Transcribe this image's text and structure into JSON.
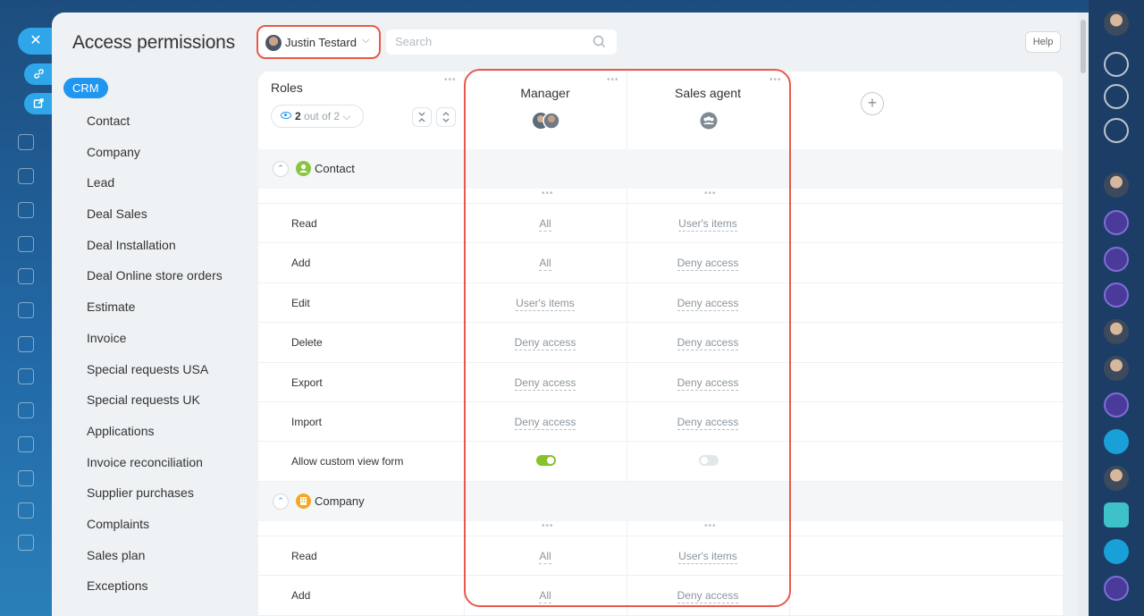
{
  "window": {
    "title": "Access permissions",
    "help_label": "Help"
  },
  "user_selector": {
    "name": "Justin Testard"
  },
  "search": {
    "placeholder": "Search"
  },
  "sidebar": {
    "section_label": "CRM",
    "items": [
      {
        "label": "Contact"
      },
      {
        "label": "Company"
      },
      {
        "label": "Lead"
      },
      {
        "label": "Deal Sales"
      },
      {
        "label": "Deal Installation"
      },
      {
        "label": "Deal Online store orders"
      },
      {
        "label": "Estimate"
      },
      {
        "label": "Invoice"
      },
      {
        "label": "Special requests USA"
      },
      {
        "label": "Special requests UK"
      },
      {
        "label": "Applications"
      },
      {
        "label": "Invoice reconciliation"
      },
      {
        "label": "Supplier purchases"
      },
      {
        "label": "Complaints"
      },
      {
        "label": "Sales plan"
      },
      {
        "label": "Exceptions"
      }
    ]
  },
  "roles_header": {
    "label": "Roles",
    "count_current": "2",
    "count_suffix": "out of 2"
  },
  "roles": [
    {
      "title": "Manager"
    },
    {
      "title": "Sales agent"
    }
  ],
  "sections": [
    {
      "title": "Contact",
      "color": "#8bc53f",
      "permissions": [
        {
          "label": "Read",
          "values": [
            "All",
            "User's items"
          ]
        },
        {
          "label": "Add",
          "values": [
            "All",
            "Deny access"
          ]
        },
        {
          "label": "Edit",
          "values": [
            "User's items",
            "Deny access"
          ]
        },
        {
          "label": "Delete",
          "values": [
            "Deny access",
            "Deny access"
          ]
        },
        {
          "label": "Export",
          "values": [
            "Deny access",
            "Deny access"
          ]
        },
        {
          "label": "Import",
          "values": [
            "Deny access",
            "Deny access"
          ]
        },
        {
          "label": "Allow custom view form",
          "toggles": [
            true,
            false
          ]
        }
      ]
    },
    {
      "title": "Company",
      "color": "#f5a623",
      "permissions": [
        {
          "label": "Read",
          "values": [
            "All",
            "User's items"
          ]
        },
        {
          "label": "Add",
          "values": [
            "All",
            "Deny access"
          ]
        }
      ]
    }
  ],
  "colors": {
    "accent": "#2096f0",
    "highlight": "#e8594c",
    "toggle_on": "#86c22a"
  }
}
